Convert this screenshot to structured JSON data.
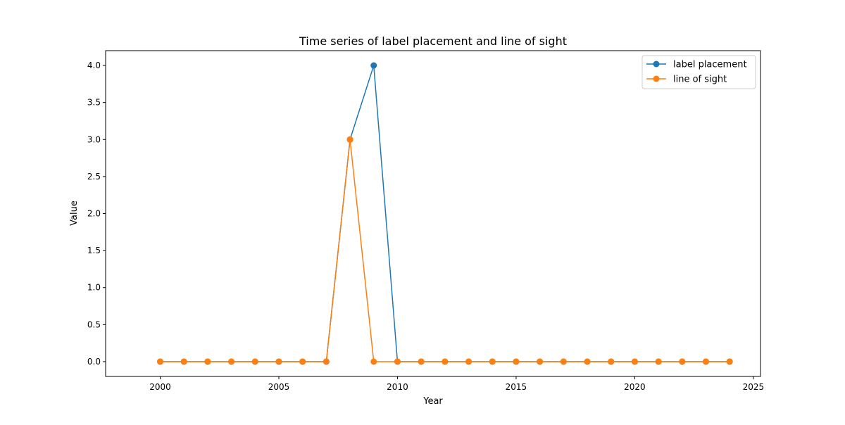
{
  "chart_data": {
    "type": "line",
    "title": "Time series of label placement and line of sight",
    "xlabel": "Year",
    "ylabel": "Value",
    "xlim": [
      1997.7,
      2025.3
    ],
    "ylim": [
      -0.2,
      4.2
    ],
    "xticks": [
      2000,
      2005,
      2010,
      2015,
      2020,
      2025
    ],
    "xtick_labels": [
      "2000",
      "2005",
      "2010",
      "2015",
      "2020",
      "2025"
    ],
    "yticks": [
      0.0,
      0.5,
      1.0,
      1.5,
      2.0,
      2.5,
      3.0,
      3.5,
      4.0
    ],
    "ytick_labels": [
      "0.0",
      "0.5",
      "1.0",
      "1.5",
      "2.0",
      "2.5",
      "3.0",
      "3.5",
      "4.0"
    ],
    "grid": false,
    "legend_position": "top-right",
    "x": [
      2000,
      2001,
      2002,
      2003,
      2004,
      2005,
      2006,
      2007,
      2008,
      2009,
      2010,
      2011,
      2012,
      2013,
      2014,
      2015,
      2016,
      2017,
      2018,
      2019,
      2020,
      2021,
      2022,
      2023,
      2024
    ],
    "series": [
      {
        "name": "label placement",
        "color": "#1f77b4",
        "values": [
          0,
          0,
          0,
          0,
          0,
          0,
          0,
          0,
          3,
          4,
          0,
          0,
          0,
          0,
          0,
          0,
          0,
          0,
          0,
          0,
          0,
          0,
          0,
          0,
          0
        ]
      },
      {
        "name": "line of sight",
        "color": "#ff7f0e",
        "values": [
          0,
          0,
          0,
          0,
          0,
          0,
          0,
          0,
          3,
          0,
          0,
          0,
          0,
          0,
          0,
          0,
          0,
          0,
          0,
          0,
          0,
          0,
          0,
          0,
          0
        ]
      }
    ]
  }
}
